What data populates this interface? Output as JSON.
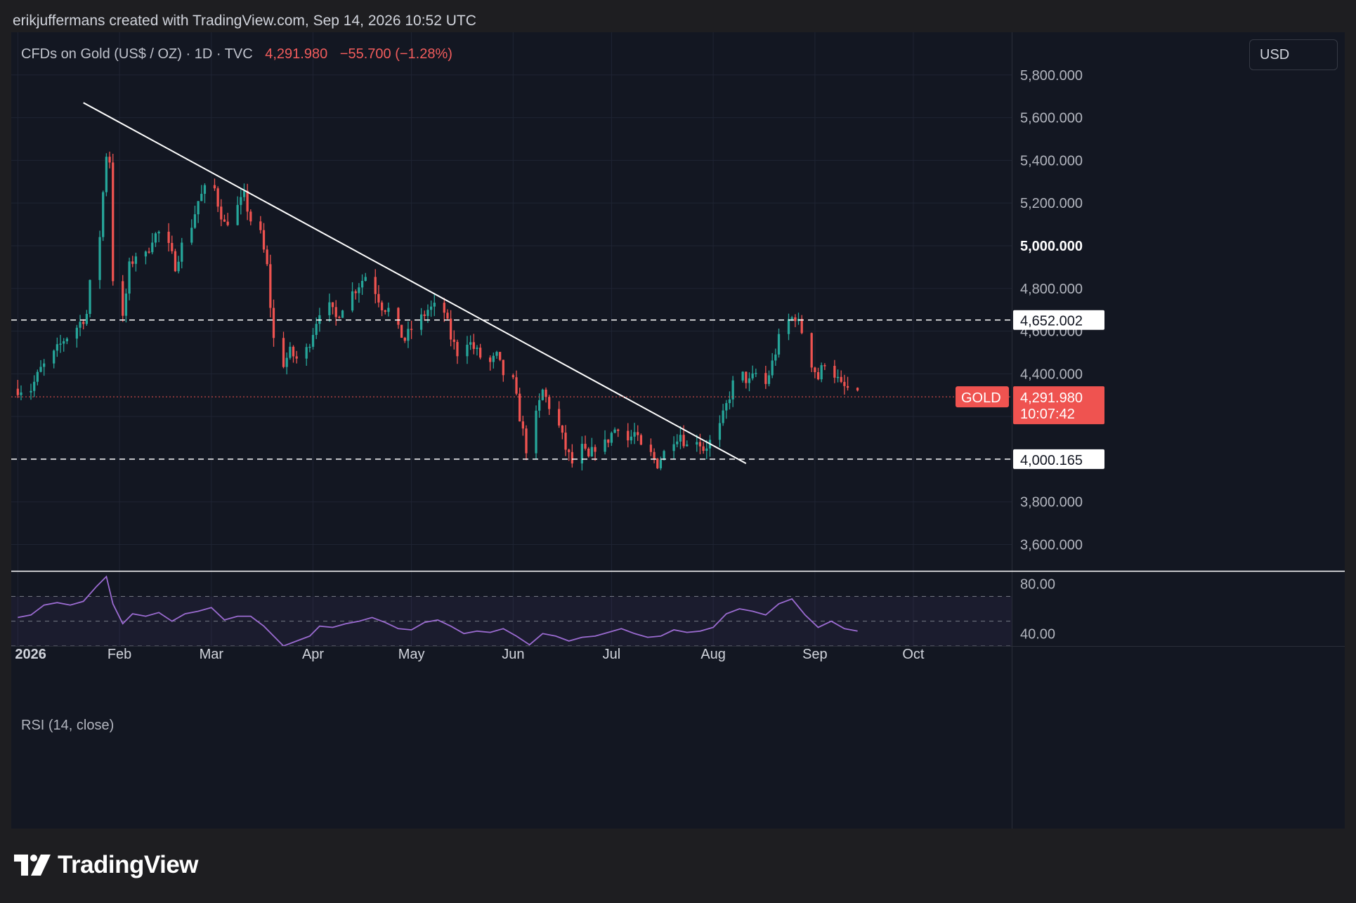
{
  "attribution": "erikjuffermans created with TradingView.com, Sep 14, 2026 10:52 UTC",
  "symbol": {
    "name": "CFDs on Gold (US$ / OZ) · 1D · TVC",
    "price": "4,291.980",
    "change": "−55.700 (−1.28%)"
  },
  "currency": "USD",
  "rsi_label": "RSI (14, close)",
  "brand": "TradingView",
  "colors": {
    "background": "#131722",
    "up": "#26a69a",
    "down": "#ef5350",
    "rsi_line": "#9b6bd1",
    "trendline": "#ffffff"
  },
  "chart_data": {
    "type": "candlestick",
    "interval": "1D",
    "ylim": [
      3480,
      6000
    ],
    "y_ticks": [
      {
        "value": 5800,
        "label": "5,800.000"
      },
      {
        "value": 5600,
        "label": "5,600.000"
      },
      {
        "value": 5400,
        "label": "5,400.000"
      },
      {
        "value": 5200,
        "label": "5,200.000"
      },
      {
        "value": 5000,
        "label": "5,000.000",
        "bold": true
      },
      {
        "value": 4800,
        "label": "4,800.000"
      },
      {
        "value": 4600,
        "label": "4,600.000"
      },
      {
        "value": 4400,
        "label": "4,400.000"
      },
      {
        "value": 3800,
        "label": "3,800.000"
      },
      {
        "value": 3600,
        "label": "3,600.000"
      }
    ],
    "x_labels": [
      {
        "date": "2026-01-01",
        "label": "2026",
        "bold": true
      },
      {
        "date": "2026-02-01",
        "label": "Feb"
      },
      {
        "date": "2026-03-01",
        "label": "Mar"
      },
      {
        "date": "2026-04-01",
        "label": "Apr"
      },
      {
        "date": "2026-05-01",
        "label": "May"
      },
      {
        "date": "2026-06-01",
        "label": "Jun"
      },
      {
        "date": "2026-07-01",
        "label": "Jul"
      },
      {
        "date": "2026-08-01",
        "label": "Aug"
      },
      {
        "date": "2026-09-01",
        "label": "Sep"
      },
      {
        "date": "2026-10-01",
        "label": "Oct"
      }
    ],
    "close_path": [
      [
        "2026-01-01",
        4330
      ],
      [
        "2026-01-05",
        4330
      ],
      [
        "2026-01-08",
        4420
      ],
      [
        "2026-01-12",
        4490
      ],
      [
        "2026-01-15",
        4560
      ],
      [
        "2026-01-19",
        4620
      ],
      [
        "2026-01-22",
        4680
      ],
      [
        "2026-01-24",
        4950
      ],
      [
        "2026-01-26",
        5050
      ],
      [
        "2026-01-27",
        5250
      ],
      [
        "2026-01-28",
        5430
      ],
      [
        "2026-01-29",
        5400
      ],
      [
        "2026-01-30",
        4850
      ],
      [
        "2026-02-02",
        4650
      ],
      [
        "2026-02-04",
        4900
      ],
      [
        "2026-02-06",
        4960
      ],
      [
        "2026-02-09",
        4950
      ],
      [
        "2026-02-11",
        5040
      ],
      [
        "2026-02-13",
        5060
      ],
      [
        "2026-02-16",
        4990
      ],
      [
        "2026-02-18",
        4910
      ],
      [
        "2026-02-20",
        5000
      ],
      [
        "2026-02-23",
        5100
      ],
      [
        "2026-02-25",
        5210
      ],
      [
        "2026-02-27",
        5260
      ],
      [
        "2026-03-01",
        5330
      ],
      [
        "2026-03-03",
        5200
      ],
      [
        "2026-03-05",
        5100
      ],
      [
        "2026-03-09",
        5180
      ],
      [
        "2026-03-11",
        5230
      ],
      [
        "2026-03-13",
        5120
      ],
      [
        "2026-03-16",
        5050
      ],
      [
        "2026-03-18",
        4900
      ],
      [
        "2026-03-19",
        4720
      ],
      [
        "2026-03-20",
        4560
      ],
      [
        "2026-03-23",
        4450
      ],
      [
        "2026-03-25",
        4500
      ],
      [
        "2026-03-27",
        4470
      ],
      [
        "2026-03-30",
        4510
      ],
      [
        "2026-04-01",
        4600
      ],
      [
        "2026-04-03",
        4700
      ],
      [
        "2026-04-06",
        4710
      ],
      [
        "2026-04-08",
        4660
      ],
      [
        "2026-04-10",
        4720
      ],
      [
        "2026-04-14",
        4800
      ],
      [
        "2026-04-17",
        4860
      ],
      [
        "2026-04-20",
        4790
      ],
      [
        "2026-04-22",
        4720
      ],
      [
        "2026-04-24",
        4700
      ],
      [
        "2026-04-27",
        4600
      ],
      [
        "2026-04-29",
        4560
      ],
      [
        "2026-05-01",
        4610
      ],
      [
        "2026-05-04",
        4660
      ],
      [
        "2026-05-06",
        4700
      ],
      [
        "2026-05-08",
        4710
      ],
      [
        "2026-05-11",
        4690
      ],
      [
        "2026-05-13",
        4570
      ],
      [
        "2026-05-15",
        4500
      ],
      [
        "2026-05-18",
        4560
      ],
      [
        "2026-05-20",
        4520
      ],
      [
        "2026-05-22",
        4480
      ],
      [
        "2026-05-25",
        4450
      ],
      [
        "2026-05-27",
        4480
      ],
      [
        "2026-05-29",
        4400
      ],
      [
        "2026-06-01",
        4360
      ],
      [
        "2026-06-03",
        4200
      ],
      [
        "2026-06-05",
        4050
      ],
      [
        "2026-06-08",
        4200
      ],
      [
        "2026-06-10",
        4320
      ],
      [
        "2026-06-12",
        4250
      ],
      [
        "2026-06-15",
        4150
      ],
      [
        "2026-06-17",
        4050
      ],
      [
        "2026-06-19",
        3980
      ],
      [
        "2026-06-22",
        4050
      ],
      [
        "2026-06-24",
        4000
      ],
      [
        "2026-06-26",
        4060
      ],
      [
        "2026-06-29",
        4070
      ],
      [
        "2026-07-01",
        4120
      ],
      [
        "2026-07-03",
        4160
      ],
      [
        "2026-07-06",
        4090
      ],
      [
        "2026-07-08",
        4120
      ],
      [
        "2026-07-10",
        4050
      ],
      [
        "2026-07-13",
        4020
      ],
      [
        "2026-07-15",
        3980
      ],
      [
        "2026-07-17",
        4030
      ],
      [
        "2026-07-20",
        4100
      ],
      [
        "2026-07-22",
        4120
      ],
      [
        "2026-07-24",
        4060
      ],
      [
        "2026-07-27",
        4100
      ],
      [
        "2026-07-29",
        4050
      ],
      [
        "2026-07-31",
        4080
      ],
      [
        "2026-08-03",
        4150
      ],
      [
        "2026-08-05",
        4250
      ],
      [
        "2026-08-07",
        4350
      ],
      [
        "2026-08-10",
        4390
      ],
      [
        "2026-08-12",
        4360
      ],
      [
        "2026-08-14",
        4400
      ],
      [
        "2026-08-17",
        4350
      ],
      [
        "2026-08-19",
        4450
      ],
      [
        "2026-08-21",
        4560
      ],
      [
        "2026-08-24",
        4650
      ],
      [
        "2026-08-26",
        4670
      ],
      [
        "2026-08-28",
        4600
      ],
      [
        "2026-08-31",
        4450
      ],
      [
        "2026-09-02",
        4380
      ],
      [
        "2026-09-04",
        4460
      ],
      [
        "2026-09-07",
        4400
      ],
      [
        "2026-09-09",
        4340
      ],
      [
        "2026-09-11",
        4330
      ],
      [
        "2026-09-14",
        4291.98
      ]
    ],
    "horizontal_lines": [
      {
        "value": 4652.002,
        "label": "4,652.002",
        "style": "dashed"
      },
      {
        "value": 4000.165,
        "label": "4,000.165",
        "style": "dashed"
      }
    ],
    "trendline": {
      "from": [
        "2026-01-21",
        5670
      ],
      "to": [
        "2026-08-11",
        3980
      ]
    },
    "last_price": {
      "symbol_label": "GOLD",
      "value": 4291.98,
      "label": "4,291.980",
      "countdown": "10:07:42"
    },
    "rsi": {
      "name": "RSI (14, close)",
      "ylim": [
        30,
        90
      ],
      "ticks": [
        {
          "value": 80,
          "label": "80.00"
        },
        {
          "value": 40,
          "label": "40.00"
        }
      ],
      "band": [
        30,
        70
      ],
      "points": [
        [
          "2026-01-01",
          53
        ],
        [
          "2026-01-05",
          55
        ],
        [
          "2026-01-09",
          63
        ],
        [
          "2026-01-13",
          65
        ],
        [
          "2026-01-17",
          63
        ],
        [
          "2026-01-21",
          66
        ],
        [
          "2026-01-25",
          78
        ],
        [
          "2026-01-28",
          86
        ],
        [
          "2026-01-30",
          64
        ],
        [
          "2026-02-02",
          48
        ],
        [
          "2026-02-05",
          56
        ],
        [
          "2026-02-09",
          54
        ],
        [
          "2026-02-13",
          57
        ],
        [
          "2026-02-17",
          50
        ],
        [
          "2026-02-21",
          56
        ],
        [
          "2026-02-25",
          58
        ],
        [
          "2026-03-01",
          61
        ],
        [
          "2026-03-05",
          51
        ],
        [
          "2026-03-09",
          54
        ],
        [
          "2026-03-13",
          54
        ],
        [
          "2026-03-17",
          46
        ],
        [
          "2026-03-20",
          38
        ],
        [
          "2026-03-23",
          30
        ],
        [
          "2026-03-27",
          34
        ],
        [
          "2026-03-31",
          38
        ],
        [
          "2026-04-03",
          46
        ],
        [
          "2026-04-07",
          45
        ],
        [
          "2026-04-11",
          48
        ],
        [
          "2026-04-15",
          50
        ],
        [
          "2026-04-19",
          53
        ],
        [
          "2026-04-23",
          49
        ],
        [
          "2026-04-27",
          44
        ],
        [
          "2026-05-01",
          43
        ],
        [
          "2026-05-05",
          49
        ],
        [
          "2026-05-09",
          51
        ],
        [
          "2026-05-13",
          46
        ],
        [
          "2026-05-17",
          40
        ],
        [
          "2026-05-21",
          42
        ],
        [
          "2026-05-25",
          41
        ],
        [
          "2026-05-29",
          44
        ],
        [
          "2026-06-02",
          38
        ],
        [
          "2026-06-06",
          31
        ],
        [
          "2026-06-10",
          40
        ],
        [
          "2026-06-14",
          38
        ],
        [
          "2026-06-18",
          34
        ],
        [
          "2026-06-22",
          37
        ],
        [
          "2026-06-26",
          38
        ],
        [
          "2026-06-30",
          41
        ],
        [
          "2026-07-04",
          44
        ],
        [
          "2026-07-08",
          40
        ],
        [
          "2026-07-12",
          37
        ],
        [
          "2026-07-16",
          38
        ],
        [
          "2026-07-20",
          43
        ],
        [
          "2026-07-24",
          41
        ],
        [
          "2026-07-28",
          42
        ],
        [
          "2026-08-01",
          45
        ],
        [
          "2026-08-05",
          56
        ],
        [
          "2026-08-09",
          60
        ],
        [
          "2026-08-13",
          58
        ],
        [
          "2026-08-17",
          55
        ],
        [
          "2026-08-21",
          64
        ],
        [
          "2026-08-25",
          68
        ],
        [
          "2026-08-29",
          55
        ],
        [
          "2026-09-02",
          45
        ],
        [
          "2026-09-06",
          50
        ],
        [
          "2026-09-10",
          44
        ],
        [
          "2026-09-14",
          42
        ]
      ]
    }
  }
}
